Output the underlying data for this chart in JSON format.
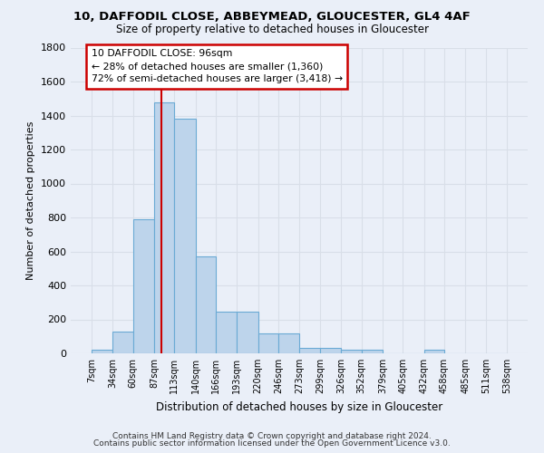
{
  "title1": "10, DAFFODIL CLOSE, ABBEYMEAD, GLOUCESTER, GL4 4AF",
  "title2": "Size of property relative to detached houses in Gloucester",
  "xlabel": "Distribution of detached houses by size in Gloucester",
  "ylabel": "Number of detached properties",
  "bin_edges": [
    7,
    34,
    60,
    87,
    113,
    140,
    166,
    193,
    220,
    246,
    273,
    299,
    326,
    352,
    379,
    405,
    432,
    458,
    485,
    511,
    538
  ],
  "bar_heights": [
    20,
    130,
    790,
    1480,
    1380,
    570,
    245,
    245,
    115,
    115,
    30,
    30,
    20,
    20,
    0,
    0,
    20,
    0,
    0,
    0
  ],
  "bar_color": "#bdd4eb",
  "bar_edge_color": "#6aaad4",
  "property_size": 96,
  "red_line_color": "#cc0000",
  "annotation_line1": "10 DAFFODIL CLOSE: 96sqm",
  "annotation_line2": "← 28% of detached houses are smaller (1,360)",
  "annotation_line3": "72% of semi-detached houses are larger (3,418) →",
  "annotation_box_color": "#ffffff",
  "annotation_border_color": "#cc0000",
  "ylim": [
    0,
    1800
  ],
  "yticks": [
    0,
    200,
    400,
    600,
    800,
    1000,
    1200,
    1400,
    1600,
    1800
  ],
  "bg_color": "#eaeff8",
  "grid_color": "#d8dee8",
  "footer1": "Contains HM Land Registry data © Crown copyright and database right 2024.",
  "footer2": "Contains public sector information licensed under the Open Government Licence v3.0."
}
